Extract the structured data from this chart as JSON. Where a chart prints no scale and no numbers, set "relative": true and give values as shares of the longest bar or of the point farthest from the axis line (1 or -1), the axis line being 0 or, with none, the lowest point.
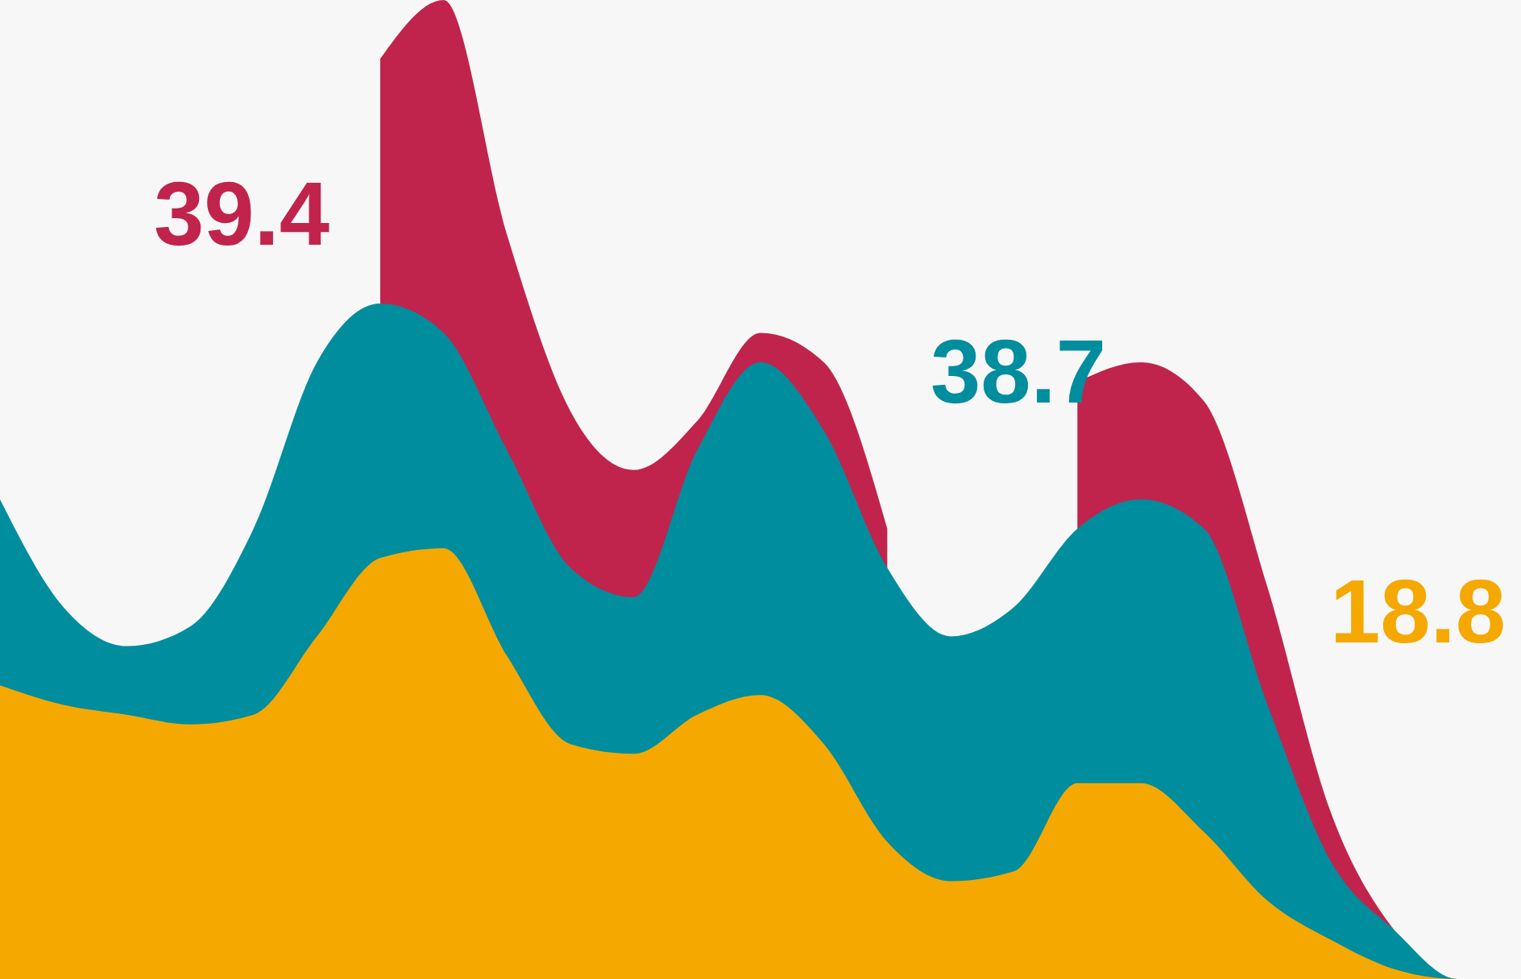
{
  "chart_data": {
    "type": "area",
    "relative": true,
    "categories": [
      null,
      null,
      null,
      null,
      null,
      null,
      null,
      null,
      null,
      null,
      null,
      null,
      null,
      null,
      null,
      null,
      null,
      null,
      null,
      null,
      null,
      null,
      null,
      null,
      null
    ],
    "series": [
      {
        "color": "#c0244c",
        "values": [
          null,
          null,
          null,
          null,
          null,
          null,
          0.94,
          1.0,
          0.76,
          0.58,
          0.52,
          0.57,
          0.66,
          0.63,
          0.46,
          null,
          null,
          0.61,
          0.63,
          0.59,
          0.4,
          0.17,
          0.05,
          0,
          0
        ]
      },
      {
        "color": "#008d9d",
        "values": [
          0.49,
          0.38,
          0.34,
          0.36,
          0.46,
          0.63,
          0.69,
          0.66,
          0.54,
          0.42,
          0.39,
          0.54,
          0.63,
          0.56,
          0.42,
          0.35,
          0.38,
          0.46,
          0.49,
          0.46,
          0.28,
          0.12,
          0.05,
          0,
          0
        ]
      },
      {
        "color": "#f5a800",
        "values": [
          0.3,
          0.28,
          0.27,
          0.26,
          0.27,
          0.35,
          0.43,
          0.44,
          0.33,
          0.24,
          0.23,
          0.27,
          0.29,
          0.24,
          0.14,
          0.1,
          0.11,
          0.2,
          0.2,
          0.15,
          0.08,
          0.04,
          0.01,
          0,
          0
        ]
      }
    ],
    "annotations": [
      "39.4",
      "38.7",
      "18.8"
    ]
  }
}
